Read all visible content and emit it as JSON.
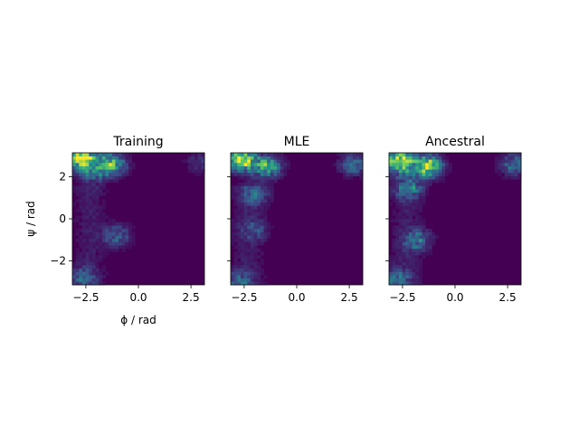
{
  "chart_data": [
    {
      "type": "heatmap",
      "title": "Training",
      "xlabel": "ϕ / rad",
      "ylabel": "ψ / rad",
      "xlim": [
        -3.1416,
        3.1416
      ],
      "ylim": [
        -3.1416,
        3.1416
      ],
      "xticks": [
        -2.5,
        0.0,
        2.5
      ],
      "xtick_labels": [
        "−2.5",
        "0.0",
        "2.5"
      ],
      "yticks": [
        -2,
        0,
        2
      ],
      "ytick_labels": [
        "−2",
        "0",
        "2"
      ],
      "colormap": "viridis",
      "bins": 40,
      "hotspots": [
        {
          "phi": -2.7,
          "psi": 2.9,
          "intensity": 1.0
        },
        {
          "phi": -1.3,
          "psi": 2.6,
          "intensity": 0.7
        },
        {
          "phi": -2.2,
          "psi": 2.2,
          "intensity": 0.35
        },
        {
          "phi": -1.0,
          "psi": -0.8,
          "intensity": 0.3
        },
        {
          "phi": -2.7,
          "psi": -2.8,
          "intensity": 0.25
        },
        {
          "phi": 2.9,
          "psi": 2.7,
          "intensity": 0.15
        }
      ]
    },
    {
      "type": "heatmap",
      "title": "MLE",
      "xlabel": "",
      "ylabel": "",
      "xlim": [
        -3.1416,
        3.1416
      ],
      "ylim": [
        -3.1416,
        3.1416
      ],
      "xticks": [
        -2.5,
        0.0,
        2.5
      ],
      "xtick_labels": [
        "−2.5",
        "0.0",
        "2.5"
      ],
      "yticks": [
        -2,
        0,
        2
      ],
      "ytick_labels": [],
      "colormap": "viridis",
      "bins": 40,
      "hotspots": [
        {
          "phi": -2.6,
          "psi": 2.8,
          "intensity": 0.9
        },
        {
          "phi": -1.4,
          "psi": 2.5,
          "intensity": 0.6
        },
        {
          "phi": -2.0,
          "psi": 1.2,
          "intensity": 0.3
        },
        {
          "phi": -2.0,
          "psi": -0.5,
          "intensity": 0.2
        },
        {
          "phi": -2.8,
          "psi": -3.0,
          "intensity": 0.3
        },
        {
          "phi": 2.7,
          "psi": 2.6,
          "intensity": 0.35
        }
      ]
    },
    {
      "type": "heatmap",
      "title": "Ancestral",
      "xlabel": "",
      "ylabel": "",
      "xlim": [
        -3.1416,
        3.1416
      ],
      "ylim": [
        -3.1416,
        3.1416
      ],
      "xticks": [
        -2.5,
        0.0,
        2.5
      ],
      "xtick_labels": [
        "−2.5",
        "0.0",
        "2.5"
      ],
      "yticks": [
        -2,
        0,
        2
      ],
      "ytick_labels": [],
      "colormap": "viridis",
      "bins": 40,
      "hotspots": [
        {
          "phi": -2.6,
          "psi": 2.7,
          "intensity": 1.0
        },
        {
          "phi": -1.3,
          "psi": 2.5,
          "intensity": 0.85
        },
        {
          "phi": -2.2,
          "psi": 1.5,
          "intensity": 0.4
        },
        {
          "phi": -1.8,
          "psi": -1.0,
          "intensity": 0.35
        },
        {
          "phi": -2.8,
          "psi": -2.9,
          "intensity": 0.35
        },
        {
          "phi": 2.8,
          "psi": 2.6,
          "intensity": 0.35
        }
      ]
    }
  ]
}
